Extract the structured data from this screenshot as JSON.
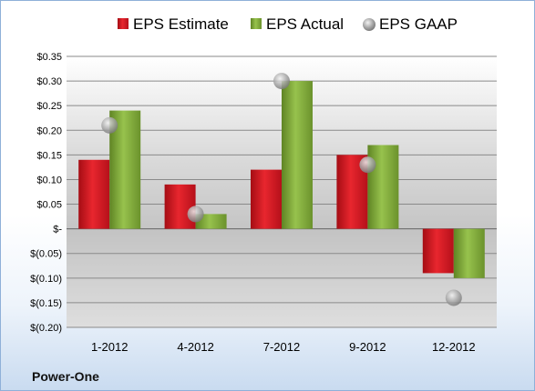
{
  "company": "Power-One",
  "chart_data": {
    "type": "bar",
    "categories": [
      "1-2012",
      "4-2012",
      "7-2012",
      "9-2012",
      "12-2012"
    ],
    "series": [
      {
        "name": "EPS Estimate",
        "kind": "bar",
        "color": "#d0141c",
        "values": [
          0.14,
          0.09,
          0.12,
          0.15,
          -0.09
        ]
      },
      {
        "name": "EPS Actual",
        "kind": "bar",
        "color": "#7ea43a",
        "values": [
          0.24,
          0.03,
          0.3,
          0.17,
          -0.1
        ]
      },
      {
        "name": "EPS GAAP",
        "kind": "scatter",
        "color": "#a9a9a9",
        "values": [
          0.21,
          0.03,
          0.3,
          0.13,
          -0.14
        ]
      }
    ],
    "y_ticks": [
      {
        "value": 0.35,
        "label": "$0.35"
      },
      {
        "value": 0.3,
        "label": "$0.30"
      },
      {
        "value": 0.25,
        "label": "$0.25"
      },
      {
        "value": 0.2,
        "label": "$0.20"
      },
      {
        "value": 0.15,
        "label": "$0.15"
      },
      {
        "value": 0.1,
        "label": "$0.10"
      },
      {
        "value": 0.05,
        "label": "$0.05"
      },
      {
        "value": 0.0,
        "label": "$-"
      },
      {
        "value": -0.05,
        "label": "$(0.05)"
      },
      {
        "value": -0.1,
        "label": "$(0.10)"
      },
      {
        "value": -0.15,
        "label": "$(0.15)"
      },
      {
        "value": -0.2,
        "label": "$(0.20)"
      }
    ],
    "ylim": [
      -0.2,
      0.35
    ],
    "grid": true,
    "legend_position": "top"
  }
}
